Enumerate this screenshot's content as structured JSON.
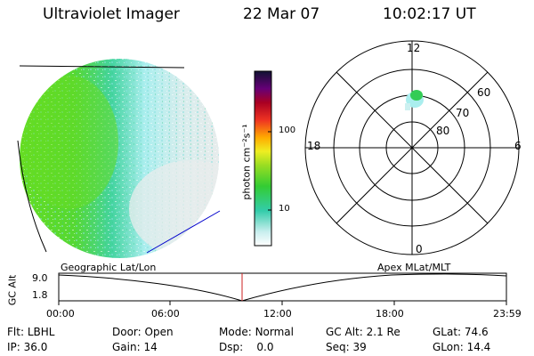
{
  "header": {
    "instrument": "Ultraviolet Imager",
    "date": "22 Mar 07",
    "time": "10:02:17 UT"
  },
  "colorbar": {
    "unit_label": "photon cm⁻²s⁻¹",
    "ticks": [
      "100",
      "10"
    ]
  },
  "polar": {
    "mlt_labels": {
      "top": "12",
      "right": "6",
      "bottom": "0",
      "left": "18"
    },
    "lat_labels": [
      "60",
      "70",
      "80"
    ]
  },
  "timeline": {
    "left_title": "Geographic Lat/Lon",
    "right_title": "Apex MLat/MLT",
    "y_axis_label": "GC Alt",
    "y_max": "9.0",
    "y_min": "1.8",
    "x_ticks": [
      "00:00",
      "06:00",
      "12:00",
      "18:00",
      "23:59"
    ]
  },
  "info": {
    "row1": [
      {
        "label": "Flt:",
        "value": "LBHL"
      },
      {
        "label": "Door:",
        "value": "Open"
      },
      {
        "label": "Mode:",
        "value": "Normal"
      },
      {
        "label": "GC Alt:",
        "value": "2.1 Re"
      },
      {
        "label": "GLat:",
        "value": "74.6"
      }
    ],
    "row2": [
      {
        "label": "IP:",
        "value": "36.0"
      },
      {
        "label": "Gain:",
        "value": "14"
      },
      {
        "label": "Dsp:",
        "value": "0.0"
      },
      {
        "label": "Seq:",
        "value": "39"
      },
      {
        "label": "GLon:",
        "value": "14.4"
      }
    ]
  },
  "colors": {
    "line": "#000000",
    "marker": "#cc2222",
    "limb": "#0000cc"
  }
}
